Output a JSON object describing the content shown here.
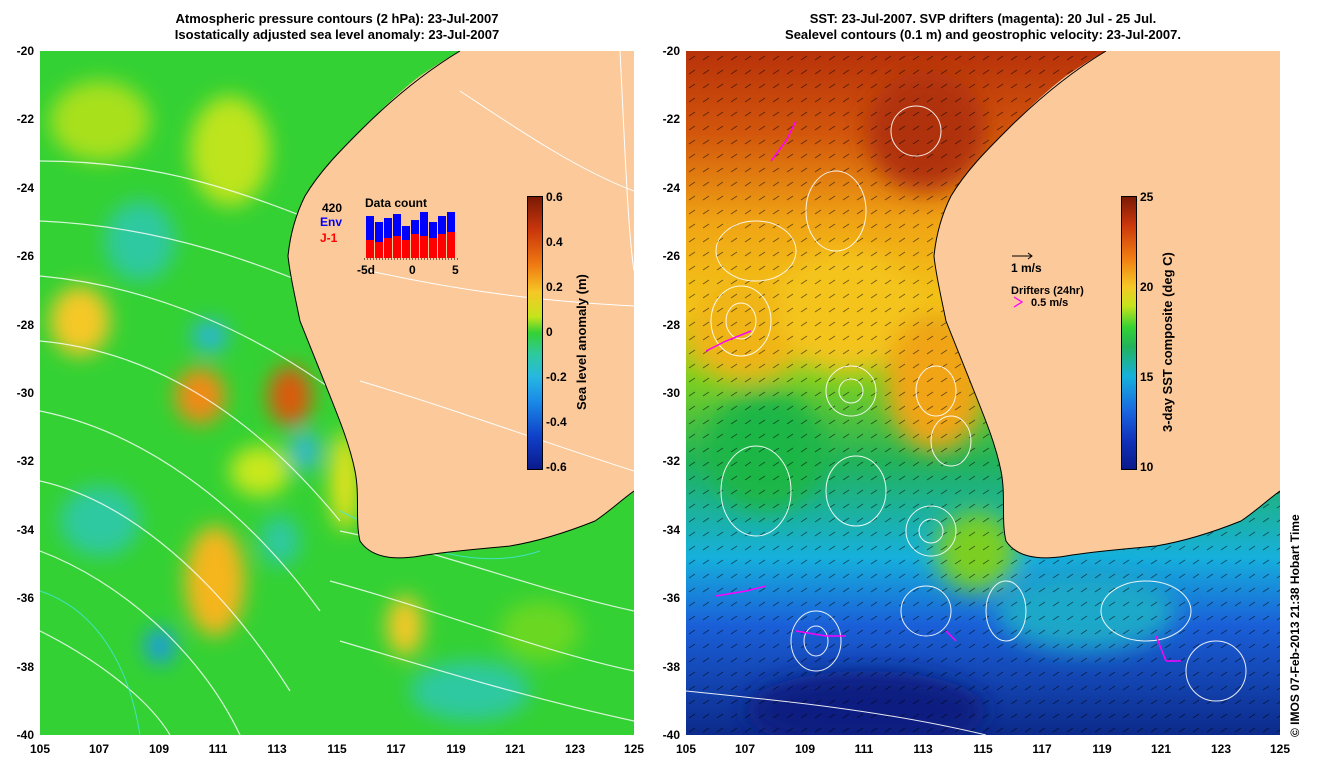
{
  "left_panel": {
    "title_line1": "Atmospheric pressure contours (2 hPa): 23-Jul-2007",
    "title_line2": "Isostatically adjusted sea level anomaly: 23-Jul-2007",
    "y_ticks": [
      "-20",
      "-22",
      "-24",
      "-26",
      "-28",
      "-30",
      "-32",
      "-34",
      "-36",
      "-38",
      "-40"
    ],
    "x_ticks": [
      "105",
      "107",
      "109",
      "111",
      "113",
      "115",
      "117",
      "119",
      "121",
      "123",
      "125"
    ],
    "colorbar": {
      "title": "Sea level anomaly (m)",
      "ticks": [
        "0.6",
        "0.4",
        "0.2",
        "0",
        "-0.2",
        "-0.4",
        "-0.6"
      ]
    },
    "inset": {
      "count": "420",
      "env_label": "Env",
      "j1_label": "J-1",
      "title": "Data count",
      "x_ticks": [
        "-5d",
        "0",
        "5"
      ],
      "env_color": "#0000ff",
      "j1_color": "#ff0000"
    }
  },
  "right_panel": {
    "title_line1": "SST: 23-Jul-2007. SVP drifters (magenta): 20 Jul - 25 Jul.",
    "title_line2": "Sealevel contours (0.1 m) and geostrophic velocity: 23-Jul-2007.",
    "y_ticks": [
      "-20",
      "-22",
      "-24",
      "-26",
      "-28",
      "-30",
      "-32",
      "-34",
      "-36",
      "-38",
      "-40"
    ],
    "x_ticks": [
      "105",
      "107",
      "109",
      "111",
      "113",
      "115",
      "117",
      "119",
      "121",
      "123",
      "125"
    ],
    "velocity_scale_label": "1 m/s",
    "drifters_label": "Drifters (24hr)",
    "drifter_scale_label": "0.5 m/s",
    "drifter_color": "#ff00ff",
    "colorbar": {
      "title": "3-day SST composite (deg C)",
      "ticks": [
        "25",
        "20",
        "15",
        "10"
      ]
    }
  },
  "credit": "© IMOS 07-Feb-2013 21:38 Hobart Time",
  "colors": {
    "land": "#fbc99a",
    "ocean_sla": "#34d134",
    "ocean_sst_warm": "#c53d08",
    "ocean_sst_cold": "#0a2a8c"
  }
}
